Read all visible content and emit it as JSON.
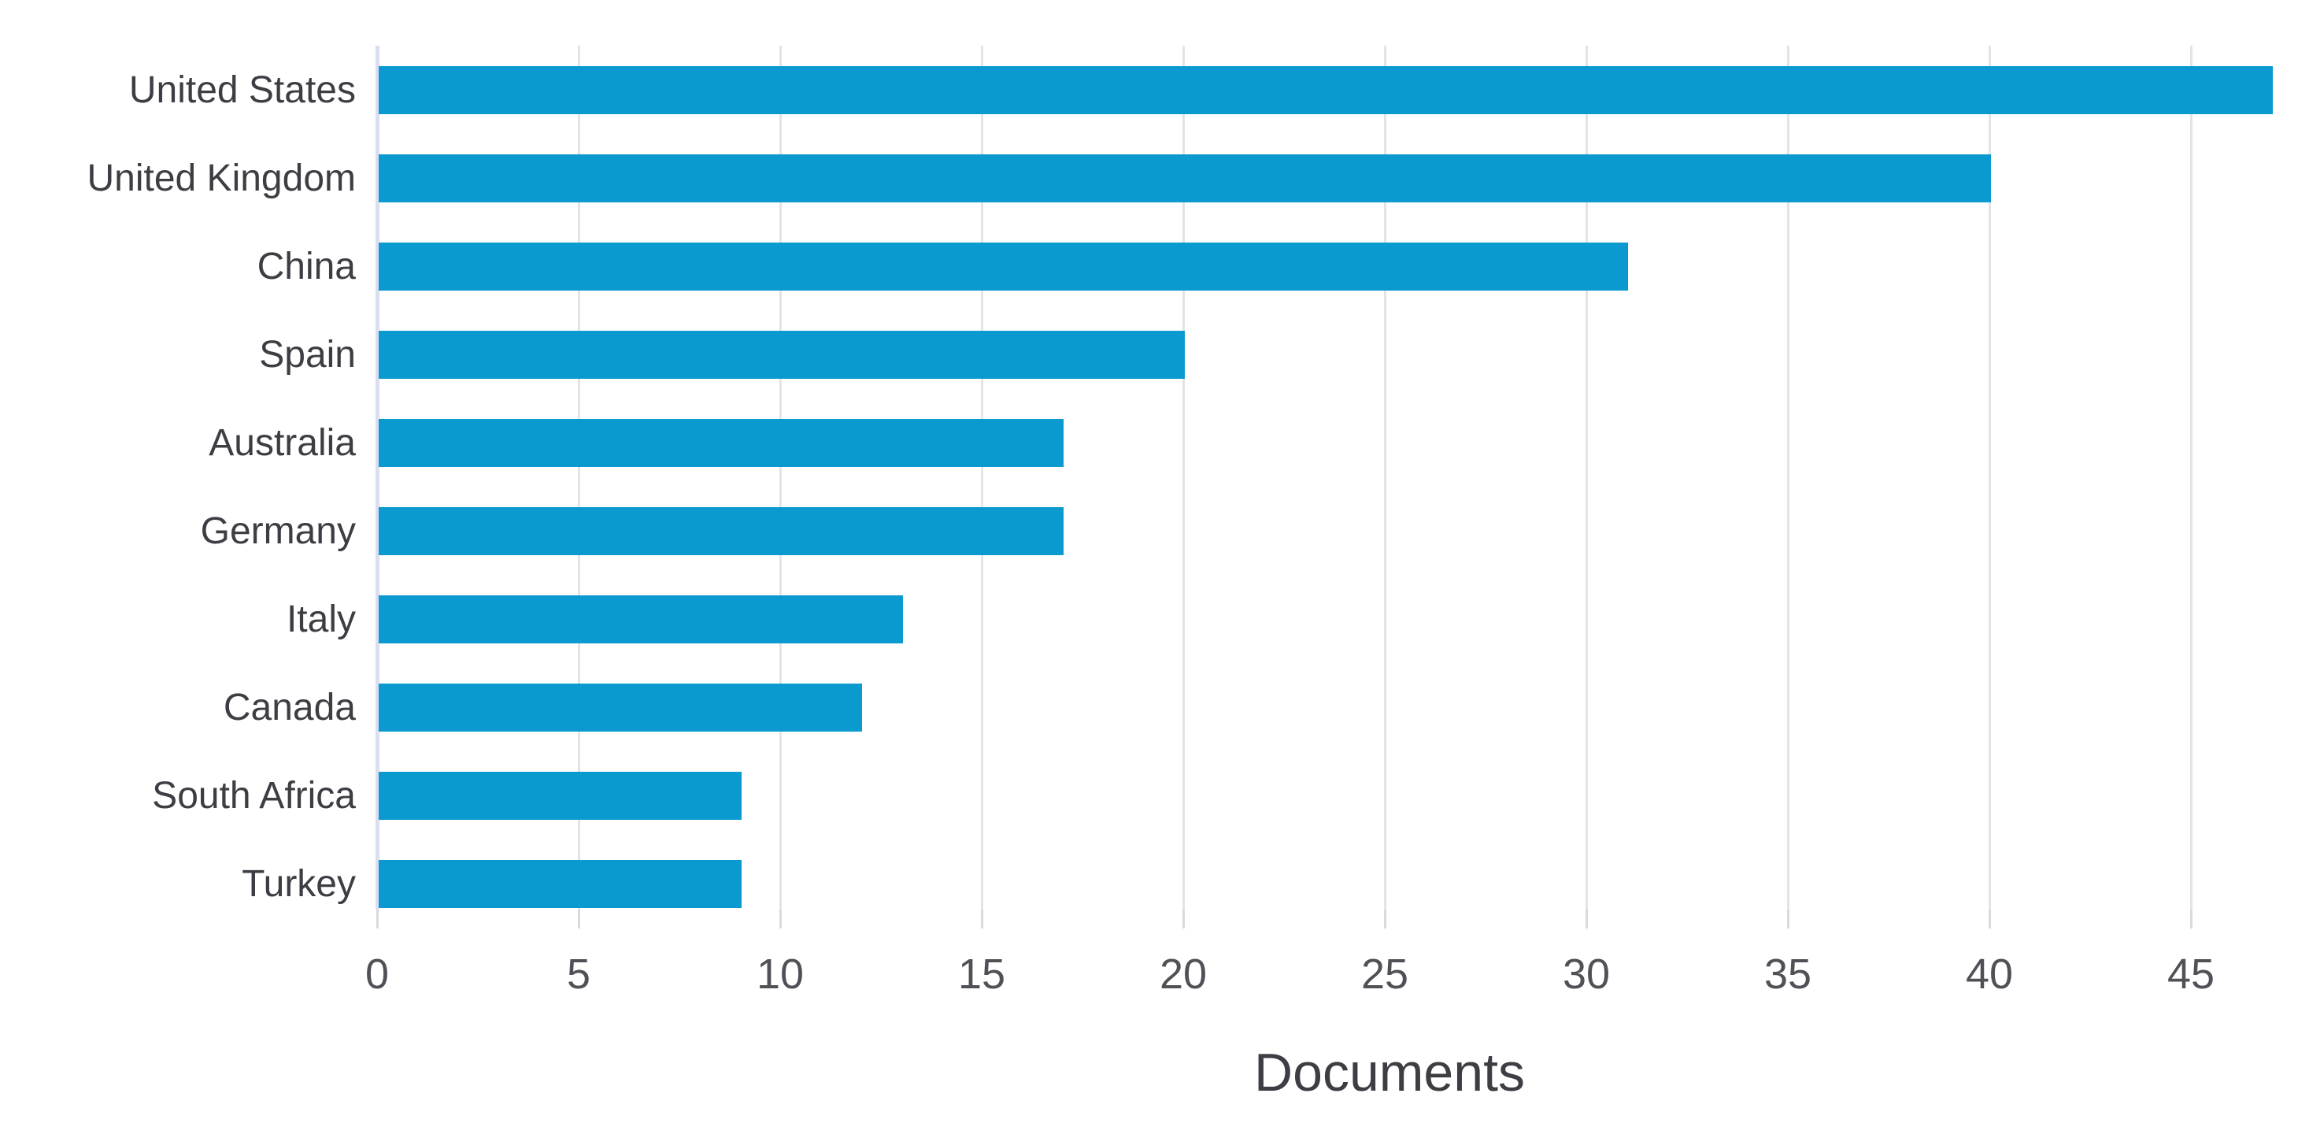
{
  "chart_data": {
    "type": "bar",
    "orientation": "horizontal",
    "title": "",
    "xlabel": "Documents",
    "ylabel": "",
    "categories": [
      "United States",
      "United Kingdom",
      "China",
      "Spain",
      "Australia",
      "Germany",
      "Italy",
      "Canada",
      "South Africa",
      "Turkey"
    ],
    "values": [
      47,
      40,
      31,
      20,
      17,
      17,
      13,
      12,
      9,
      9
    ],
    "xticks": [
      0,
      5,
      10,
      15,
      20,
      25,
      30,
      35,
      40,
      45
    ],
    "xlim": [
      0,
      47.9
    ],
    "grid": "vertical",
    "legend": "none"
  },
  "colors": {
    "bar": "#0b9ad0",
    "gridline": "#e4e4e6",
    "axis_line": "#d9def0",
    "tick_stub": "#d9dadf",
    "category_label": "#3d3e44",
    "tick_label": "#4f5157",
    "axis_title": "#3d3e44",
    "background": "#ffffff"
  }
}
